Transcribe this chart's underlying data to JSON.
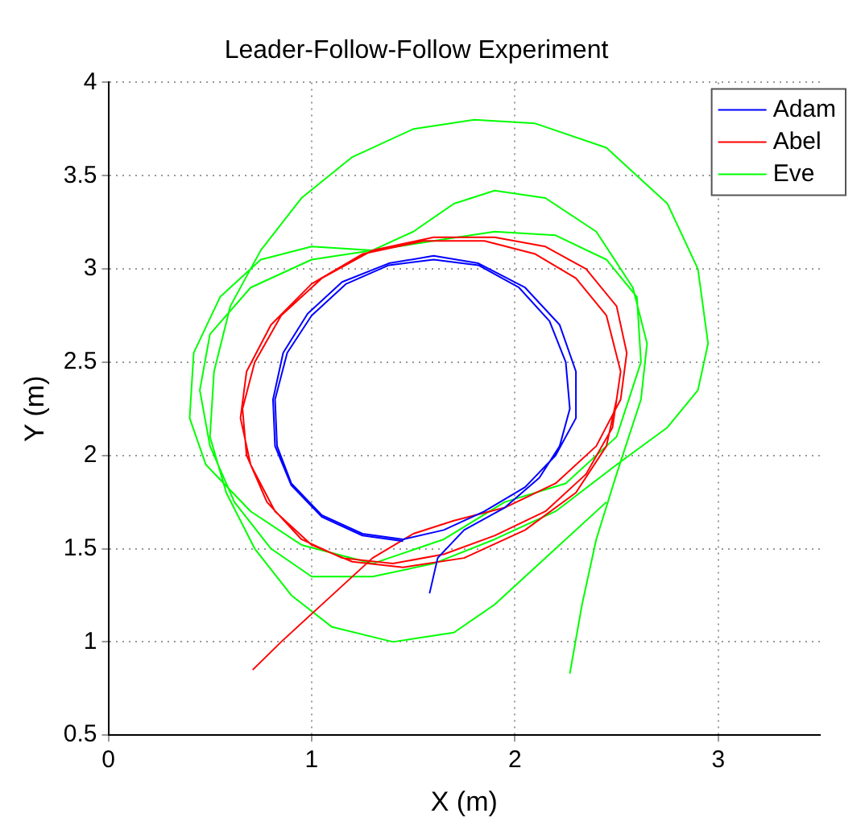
{
  "chart_data": {
    "type": "line",
    "title": "Leader-Follow-Follow Experiment",
    "xlabel": "X (m)",
    "ylabel": "Y (m)",
    "xlim": [
      0,
      3.5
    ],
    "xticks": [
      0,
      1,
      2,
      3
    ],
    "ylim": [
      0.5,
      4
    ],
    "yticks": [
      0.5,
      1,
      1.5,
      2,
      2.5,
      3,
      3.5,
      4
    ],
    "grid": true,
    "legend": "top right",
    "series": [
      {
        "name": "Adam",
        "color": "#0000ff",
        "x": [
          1.58,
          1.62,
          1.75,
          1.95,
          2.12,
          2.22,
          2.27,
          2.25,
          2.17,
          2.02,
          1.82,
          1.6,
          1.38,
          1.17,
          1.0,
          0.88,
          0.82,
          0.83,
          0.9,
          1.05,
          1.25,
          1.45,
          1.65,
          1.85,
          2.05,
          2.2,
          2.3,
          2.3,
          2.22,
          2.05,
          1.82,
          1.6,
          1.38,
          1.15,
          0.98,
          0.86,
          0.81,
          0.82,
          0.9,
          1.05,
          1.25,
          1.45
        ],
        "values": [
          1.26,
          1.45,
          1.6,
          1.72,
          1.88,
          2.05,
          2.25,
          2.5,
          2.72,
          2.9,
          3.02,
          3.05,
          3.02,
          2.92,
          2.75,
          2.55,
          2.3,
          2.05,
          1.85,
          1.68,
          1.58,
          1.55,
          1.6,
          1.7,
          1.83,
          2.0,
          2.2,
          2.45,
          2.7,
          2.9,
          3.03,
          3.07,
          3.03,
          2.93,
          2.76,
          2.55,
          2.3,
          2.05,
          1.84,
          1.67,
          1.57,
          1.54
        ]
      },
      {
        "name": "Abel",
        "color": "#ff0000",
        "x": [
          0.71,
          0.85,
          1.0,
          1.15,
          1.3,
          1.5,
          1.7,
          1.95,
          2.2,
          2.4,
          2.52,
          2.55,
          2.5,
          2.35,
          2.15,
          1.9,
          1.6,
          1.3,
          1.05,
          0.85,
          0.72,
          0.66,
          0.68,
          0.78,
          0.95,
          1.15,
          1.4,
          1.65,
          1.9,
          2.15,
          2.35,
          2.48,
          2.52,
          2.45,
          2.3,
          2.1,
          1.85,
          1.55,
          1.25,
          1.0,
          0.8,
          0.68,
          0.65,
          0.7,
          0.82,
          1.0,
          1.2,
          1.45,
          1.75,
          2.05,
          2.3,
          2.45,
          2.5
        ],
        "values": [
          0.85,
          1.0,
          1.15,
          1.3,
          1.45,
          1.58,
          1.65,
          1.72,
          1.85,
          2.05,
          2.3,
          2.55,
          2.8,
          3.0,
          3.12,
          3.17,
          3.17,
          3.1,
          2.95,
          2.75,
          2.5,
          2.25,
          2.0,
          1.75,
          1.55,
          1.45,
          1.42,
          1.47,
          1.57,
          1.7,
          1.9,
          2.15,
          2.45,
          2.75,
          2.95,
          3.08,
          3.15,
          3.15,
          3.08,
          2.92,
          2.7,
          2.45,
          2.2,
          1.95,
          1.7,
          1.52,
          1.43,
          1.4,
          1.45,
          1.6,
          1.8,
          2.05,
          2.3
        ]
      },
      {
        "name": "Eve",
        "color": "#00ff00",
        "x": [
          2.27,
          2.33,
          2.4,
          2.5,
          2.62,
          2.65,
          2.58,
          2.4,
          2.15,
          1.9,
          1.7,
          1.5,
          1.3,
          1.0,
          0.75,
          0.55,
          0.42,
          0.4,
          0.48,
          0.7,
          0.95,
          1.3,
          1.65,
          1.95,
          2.25,
          2.5,
          2.62,
          2.6,
          2.45,
          2.2,
          1.9,
          1.6,
          1.3,
          1.0,
          0.7,
          0.5,
          0.45,
          0.5,
          0.62,
          0.8,
          1.0,
          1.3,
          1.6,
          1.9,
          2.2,
          2.5,
          2.75,
          2.9,
          2.95,
          2.9,
          2.75,
          2.45,
          2.1,
          1.8,
          1.5,
          1.2,
          0.95,
          0.75,
          0.6,
          0.52,
          0.5,
          0.58,
          0.72,
          0.9,
          1.1,
          1.4,
          1.7,
          1.9,
          2.2,
          2.45
        ],
        "values": [
          0.83,
          1.2,
          1.55,
          1.9,
          2.3,
          2.6,
          2.9,
          3.2,
          3.38,
          3.42,
          3.35,
          3.2,
          3.1,
          3.12,
          3.05,
          2.85,
          2.55,
          2.2,
          1.95,
          1.7,
          1.52,
          1.42,
          1.55,
          1.75,
          1.85,
          2.1,
          2.5,
          2.85,
          3.05,
          3.18,
          3.2,
          3.15,
          3.1,
          3.05,
          2.9,
          2.65,
          2.35,
          2.05,
          1.75,
          1.5,
          1.35,
          1.35,
          1.42,
          1.55,
          1.7,
          1.95,
          2.15,
          2.35,
          2.6,
          3.0,
          3.35,
          3.65,
          3.78,
          3.8,
          3.75,
          3.6,
          3.38,
          3.1,
          2.8,
          2.45,
          2.1,
          1.8,
          1.5,
          1.25,
          1.08,
          1.0,
          1.05,
          1.2,
          1.5,
          1.75
        ]
      }
    ]
  }
}
